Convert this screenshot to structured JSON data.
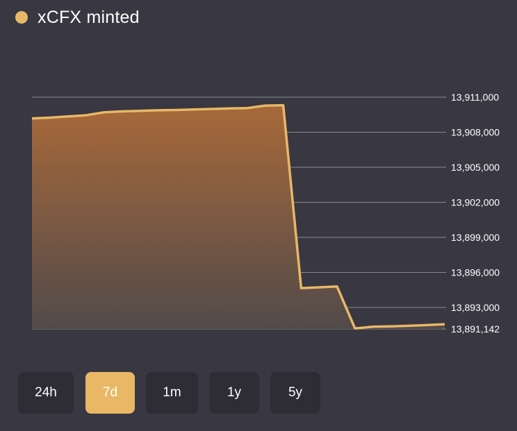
{
  "legend": {
    "label": "xCFX minted",
    "color": "#e8b866"
  },
  "range_buttons": [
    {
      "label": "24h",
      "active": false
    },
    {
      "label": "7d",
      "active": true
    },
    {
      "label": "1m",
      "active": false
    },
    {
      "label": "1y",
      "active": false
    },
    {
      "label": "5y",
      "active": false
    }
  ],
  "chart_data": {
    "type": "area",
    "series": [
      {
        "name": "xCFX minted",
        "color": "#e8b866",
        "values": [
          13909180,
          13909250,
          13909350,
          13909450,
          13909700,
          13909780,
          13909830,
          13909880,
          13909900,
          13909940,
          13909990,
          13910030,
          13910070,
          13910280,
          13910310,
          13894660,
          13894720,
          13894800,
          13891200,
          13891350,
          13891380,
          13891430,
          13891490,
          13891560
        ]
      }
    ],
    "y_ticks": [
      "13,911,000",
      "13,908,000",
      "13,905,000",
      "13,902,000",
      "13,899,000",
      "13,896,000",
      "13,893,000",
      "13,891,142"
    ],
    "y_tick_values": [
      13911000,
      13908000,
      13905000,
      13902000,
      13899000,
      13896000,
      13893000,
      13891142
    ],
    "ylim": [
      13891142,
      13911000
    ],
    "y_axis_position": "right",
    "grid": true,
    "legend_position": "top-left"
  }
}
